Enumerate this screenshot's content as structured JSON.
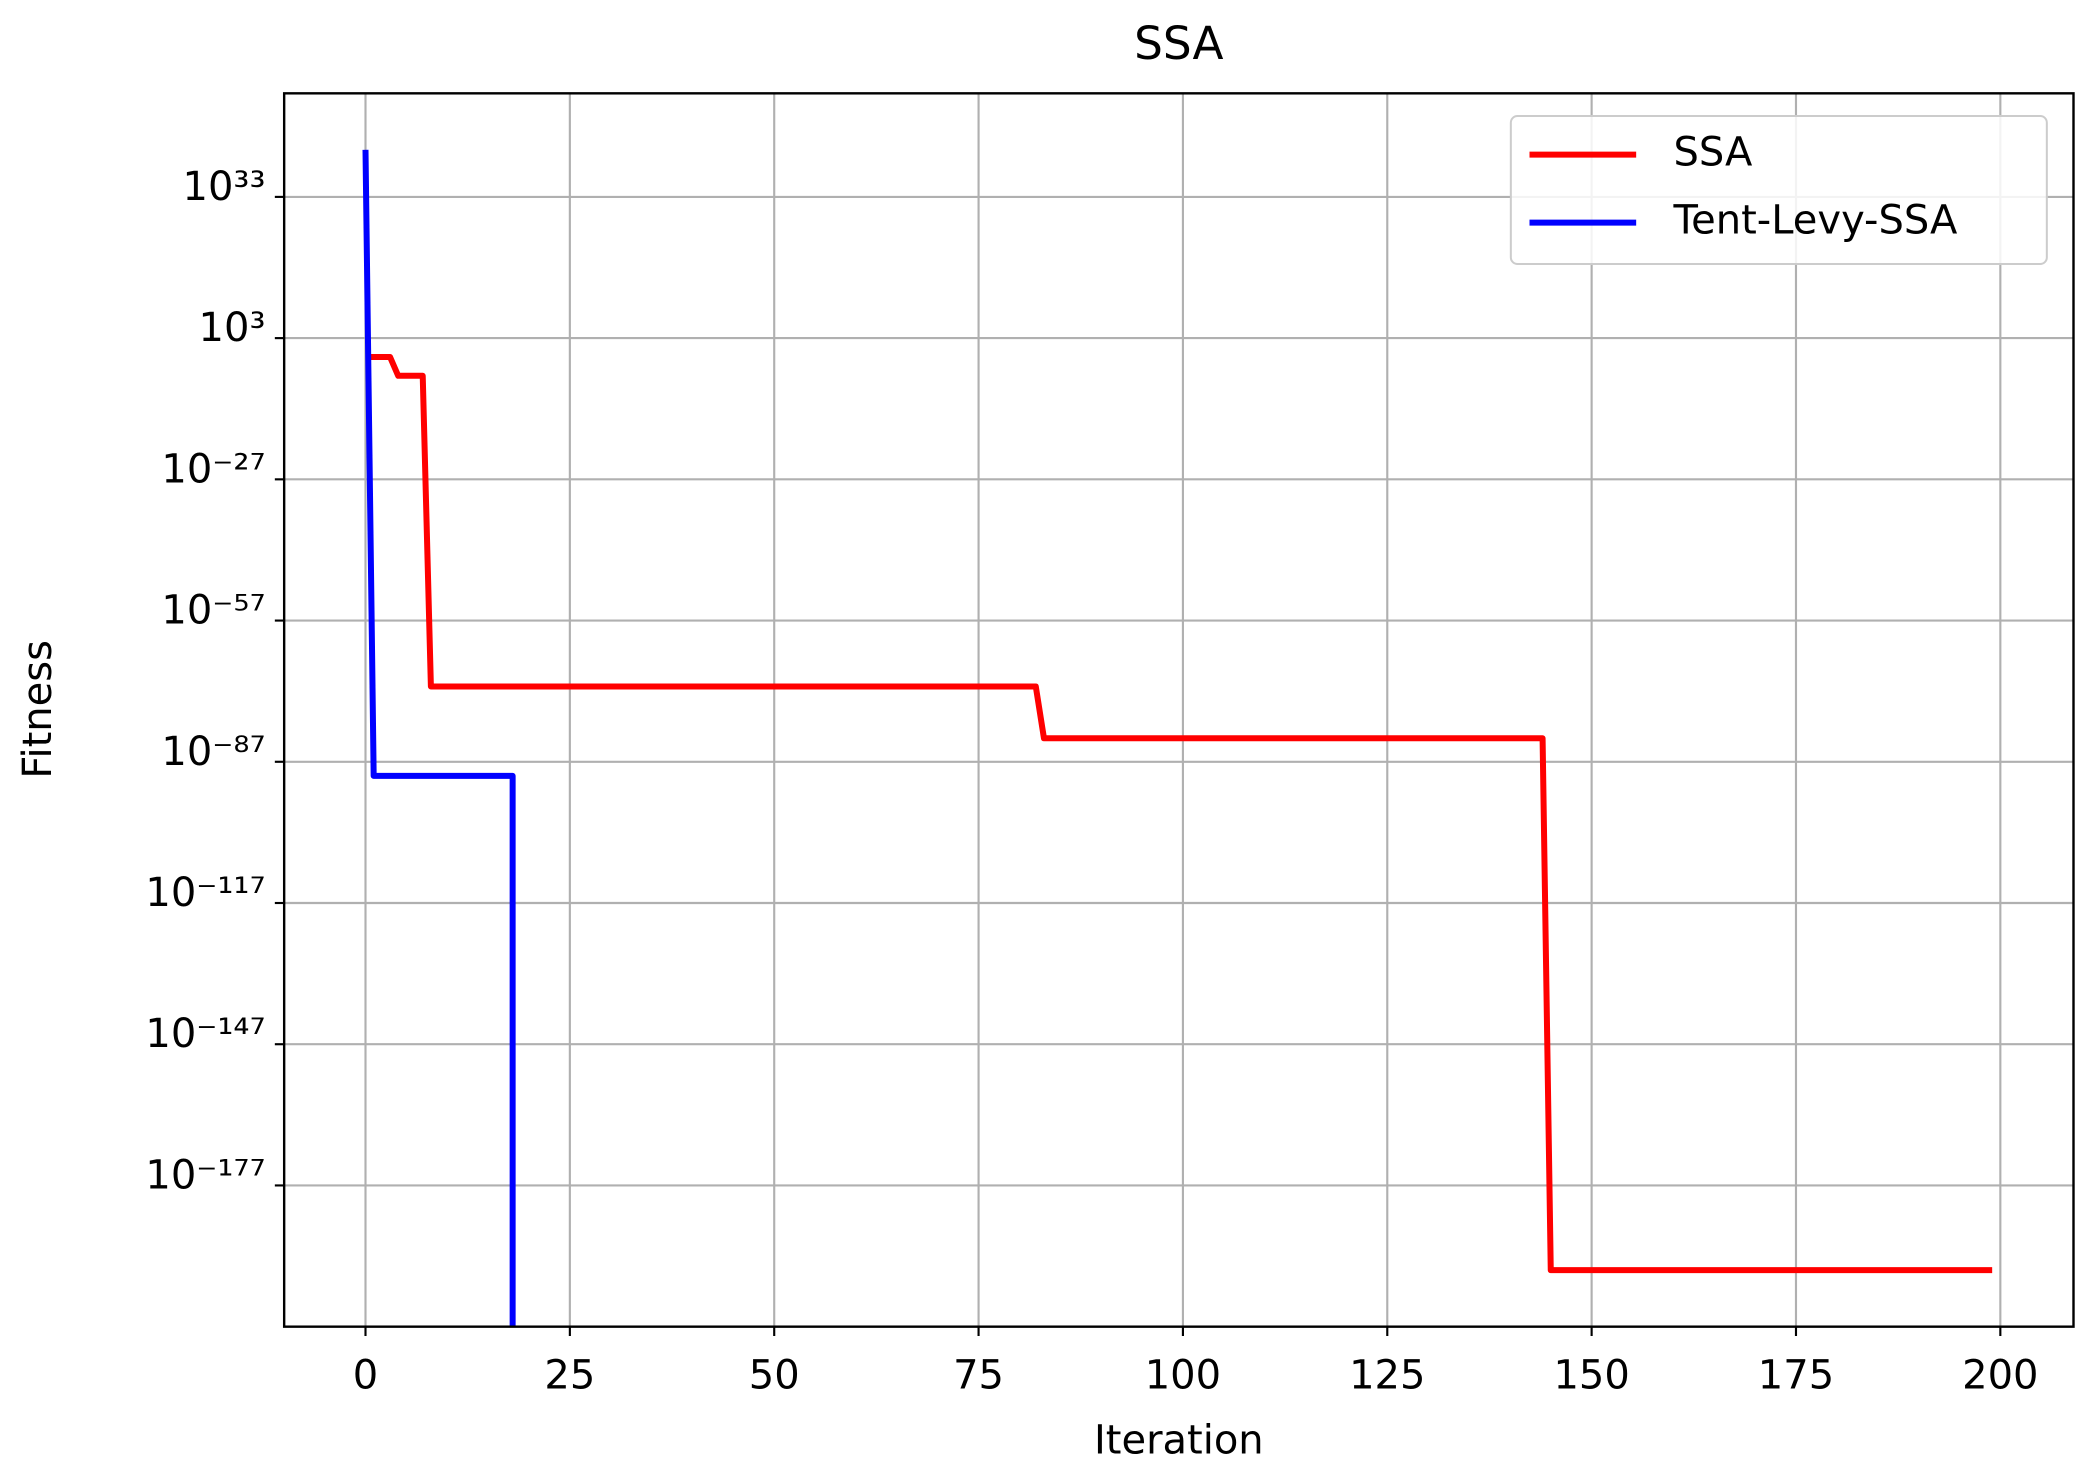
{
  "chart_data": {
    "type": "line",
    "title": "SSA",
    "x_label": "Iteration",
    "y_label": "Fitness",
    "log_y": true,
    "grid": true,
    "legend": "upper right",
    "xlim": [
      -9.95,
      208.95
    ],
    "xticks": [
      0,
      25,
      50,
      75,
      100,
      125,
      150,
      175,
      200
    ],
    "ylim": [
      1e-207,
      1e+55
    ],
    "yticks": [
      {
        "value": 1e+33,
        "label": "10³³"
      },
      {
        "value": 1000.0,
        "label": "10³"
      },
      {
        "value": 1e-27,
        "label": "10⁻²⁷"
      },
      {
        "value": 1e-57,
        "label": "10⁻⁵⁷"
      },
      {
        "value": 1e-87,
        "label": "10⁻⁸⁷"
      },
      {
        "value": 1e-117,
        "label": "10⁻¹¹⁷"
      },
      {
        "value": 1e-147,
        "label": "10⁻¹⁴⁷"
      },
      {
        "value": 1e-177,
        "label": "10⁻¹⁷⁷"
      }
    ],
    "series": [
      {
        "name": "SSA",
        "color": "#ff0000",
        "x": [
          0,
          3,
          4,
          7,
          8,
          82,
          83,
          144,
          145,
          199
        ],
        "values": [
          0.1,
          0.1,
          1e-05,
          1e-05,
          1e-71,
          1e-71,
          1e-82,
          1e-82,
          1e-195,
          1e-195
        ]
      },
      {
        "name": "Tent-Levy-SSA",
        "color": "#0000ff",
        "x": [
          0,
          1,
          18,
          18
        ],
        "values": [
          1e+43,
          1e-90,
          1e-90,
          0
        ]
      }
    ]
  }
}
